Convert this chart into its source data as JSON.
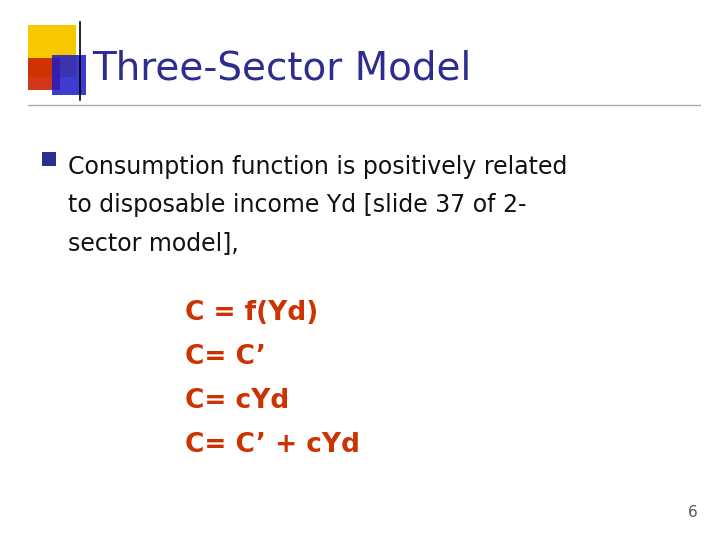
{
  "title": "Three-Sector Model",
  "title_color": "#2d2d8f",
  "title_fontsize": 28,
  "title_fontweight": "normal",
  "background_color": "#ffffff",
  "bullet_color": "#111111",
  "bullet_fontsize": 17,
  "bullet_marker_color": "#2d2d8f",
  "bullet_lines": [
    "Consumption function is positively related",
    "to disposable income Yd [slide 37 of 2-",
    "sector model],"
  ],
  "equations": [
    "C = f(Yd)",
    "C= C’",
    "C= cYd",
    "C= C’ + cYd"
  ],
  "eq_color": "#cc3300",
  "eq_fontsize": 19,
  "eq_fontweight": "bold",
  "page_number": "6",
  "page_num_color": "#555555",
  "page_num_fontsize": 11,
  "yellow_color": "#f5c800",
  "red_color": "#cc2200",
  "blue_color": "#1a1acc",
  "divider_color": "#aaaaaa"
}
